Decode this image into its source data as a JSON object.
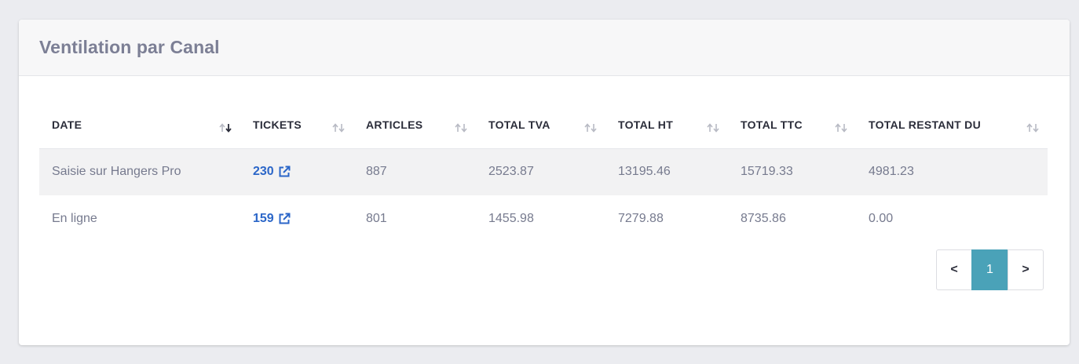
{
  "card": {
    "title": "Ventilation par Canal"
  },
  "table": {
    "columns": [
      {
        "label": "DATE",
        "sort": "desc"
      },
      {
        "label": "TICKETS",
        "sort": "none"
      },
      {
        "label": "ARTICLES",
        "sort": "none"
      },
      {
        "label": "TOTAL TVA",
        "sort": "none"
      },
      {
        "label": "TOTAL HT",
        "sort": "none"
      },
      {
        "label": "TOTAL TTC",
        "sort": "none"
      },
      {
        "label": "TOTAL RESTANT DU",
        "sort": "none"
      }
    ],
    "rows": [
      {
        "date": "Saisie sur Hangers Pro",
        "tickets": "230",
        "articles": "887",
        "total_tva": "2523.87",
        "total_ht": "13195.46",
        "total_ttc": "15719.33",
        "total_restant_du": "4981.23"
      },
      {
        "date": "En ligne",
        "tickets": "159",
        "articles": "801",
        "total_tva": "1455.98",
        "total_ht": "7279.88",
        "total_ttc": "8735.86",
        "total_restant_du": "0.00"
      }
    ]
  },
  "pagination": {
    "prev_label": "<",
    "current_page": "1",
    "next_label": ">"
  },
  "colors": {
    "link": "#2b66c8",
    "active_page": "#4aa2b8",
    "title": "#7c7f95"
  },
  "icons": {
    "sort_desc": "sort-desc-icon",
    "sort_neutral": "sort-icon",
    "external_link": "external-link-icon"
  }
}
